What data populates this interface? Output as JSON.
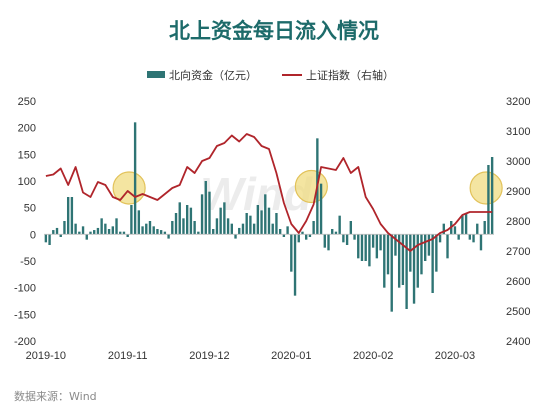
{
  "chart_data": {
    "type": "bar+line",
    "title": "北上资金每日流入情况",
    "source": "数据来源：Wind",
    "watermark": "Wind",
    "legend": {
      "placement": "top",
      "bar_label": "北向资金（亿元）",
      "line_label": "上证指数（右轴）"
    },
    "colors": {
      "bar": "#2e7474",
      "line": "#b0252b",
      "title": "#1d6b6a",
      "highlight": "#f0dc82"
    },
    "y_left": {
      "ylim": [
        -200,
        250
      ],
      "ticks": [
        "250",
        "200",
        "150",
        "100",
        "50",
        "0",
        "-50",
        "-100",
        "-150",
        "-200"
      ]
    },
    "y_right": {
      "ylim": [
        2400,
        3200
      ],
      "ticks": [
        "3200",
        "3100",
        "3000",
        "2900",
        "2800",
        "2700",
        "2600",
        "2500",
        "2400"
      ]
    },
    "x_ticks": [
      "2019-10",
      "2019-11",
      "2019-12",
      "2020-01",
      "2020-02",
      "2020-03"
    ],
    "x_tick_index": [
      0,
      22,
      44,
      66,
      88,
      110
    ],
    "bars": [
      -15,
      -20,
      8,
      12,
      -5,
      25,
      70,
      70,
      20,
      5,
      15,
      -10,
      5,
      8,
      12,
      30,
      20,
      10,
      15,
      30,
      5,
      5,
      -5,
      55,
      210,
      45,
      15,
      20,
      25,
      15,
      10,
      8,
      5,
      -8,
      25,
      40,
      60,
      30,
      55,
      50,
      25,
      5,
      75,
      100,
      80,
      10,
      30,
      50,
      60,
      30,
      20,
      -8,
      12,
      20,
      40,
      35,
      20,
      55,
      45,
      75,
      50,
      20,
      40,
      10,
      -5,
      15,
      -70,
      -115,
      -15,
      5,
      -10,
      -5,
      25,
      180,
      95,
      -25,
      -30,
      10,
      5,
      35,
      -15,
      -20,
      25,
      -10,
      -45,
      -50,
      -50,
      -60,
      -25,
      -45,
      -30,
      -100,
      -75,
      -145,
      -40,
      -100,
      -95,
      -140,
      -70,
      -130,
      -100,
      -75,
      -50,
      -40,
      -110,
      -70,
      -15,
      20,
      -45,
      25,
      15,
      -10,
      35,
      40,
      -10,
      -15,
      20,
      -30,
      25,
      130,
      145
    ],
    "line_index": [
      0,
      2,
      4,
      6,
      8,
      10,
      12,
      14,
      16,
      18,
      20,
      22,
      24,
      26,
      28,
      30,
      32,
      34,
      36,
      38,
      40,
      42,
      44,
      46,
      48,
      50,
      52,
      54,
      56,
      58,
      60,
      62,
      64,
      66,
      68,
      70,
      72,
      74,
      76,
      78,
      80,
      82,
      84,
      86,
      88,
      90,
      92,
      94,
      96,
      98,
      100,
      102,
      104,
      106,
      108,
      110,
      112,
      114,
      116,
      118,
      120
    ],
    "line_values": [
      2950,
      2955,
      2975,
      2920,
      2980,
      2895,
      2880,
      2930,
      2920,
      2880,
      2870,
      2900,
      2880,
      2890,
      2880,
      2870,
      2890,
      2910,
      2920,
      2980,
      2960,
      3000,
      3010,
      3050,
      3060,
      3085,
      3065,
      3090,
      3080,
      3050,
      3040,
      2960,
      2860,
      2790,
      2760,
      2800,
      2855,
      2980,
      2975,
      2970,
      3010,
      2960,
      2980,
      2880,
      2840,
      2790,
      2760,
      2740,
      2720,
      2700,
      2720,
      2730,
      2740,
      2760,
      2770,
      2790,
      2820,
      2830,
      2830,
      2830,
      2830
    ]
  }
}
